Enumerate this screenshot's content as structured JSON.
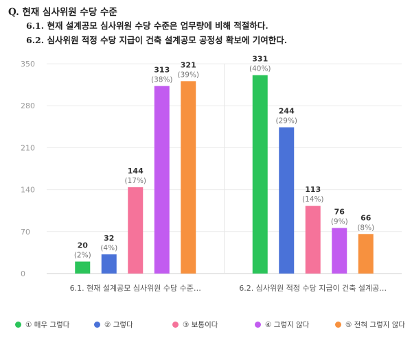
{
  "header": {
    "question": "Q. 현재 심사위원 수당 수준",
    "sub1": "6.1. 현재 설계공모 심사위원 수당 수준은 업무량에 비해 적절하다.",
    "sub2": "6.2. 심사위원 적정 수당 지급이 건축 설계공모 공정성 확보에 기여한다."
  },
  "chart_data": {
    "type": "bar",
    "categories": [
      "6.1. 현재 설계공모 심사위원 수당 수준…",
      "6.2. 심사위원 적정 수당 지급이 건축 설계공…"
    ],
    "series": [
      {
        "name": "① 매우 그렇다",
        "color": "#2bc45a",
        "values": [
          20,
          331
        ],
        "labels": [
          "(2%)",
          "(40%)"
        ]
      },
      {
        "name": "② 그렇다",
        "color": "#4a72d8",
        "values": [
          32,
          244
        ],
        "labels": [
          "(4%)",
          "(29%)"
        ]
      },
      {
        "name": "③ 보통이다",
        "color": "#f5739a",
        "values": [
          144,
          113
        ],
        "labels": [
          "(17%)",
          "(14%)"
        ]
      },
      {
        "name": "④ 그렇지 않다",
        "color": "#c25cf0",
        "values": [
          313,
          76
        ],
        "labels": [
          "(38%)",
          "(9%)"
        ]
      },
      {
        "name": "⑤ 전혀 그렇지 않다",
        "color": "#f7913f",
        "values": [
          321,
          66
        ],
        "labels": [
          "(39%)",
          "(8%)"
        ]
      }
    ],
    "yticks": [
      0,
      70,
      140,
      210,
      280,
      350
    ],
    "ylim": [
      0,
      350
    ],
    "grid": true,
    "legend": "bottom"
  }
}
